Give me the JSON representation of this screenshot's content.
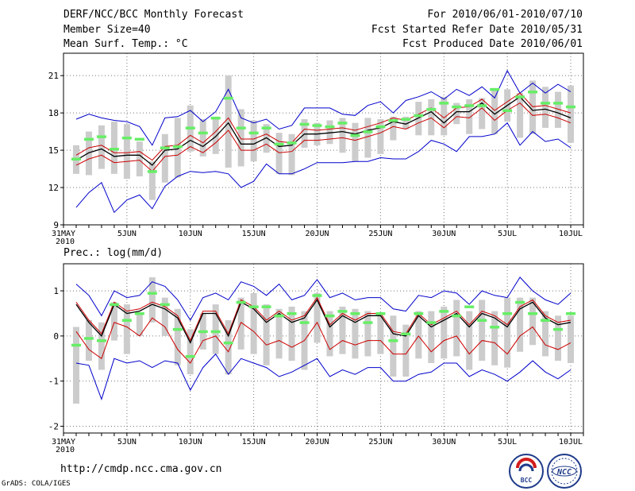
{
  "header": {
    "title": "DERF/NCC/BCC Monthly Forecast",
    "member_size": "Member Size=40",
    "variable": "Mean Surf. Temp.: °C",
    "period": "For 2010/06/01-2010/07/10",
    "fcst_started": "Fcst Started Refer Date 2010/05/31",
    "fcst_produced": "Fcst Produced Date 2010/06/01"
  },
  "footer": {
    "url": "http://cmdp.ncc.cma.gov.cn",
    "grads": "GrADS: COLA/IGES",
    "logo_left": "BCC",
    "logo_right": "NCC"
  },
  "chart_data": [
    {
      "type": "line",
      "title": "Mean Surf. Temp.: °C",
      "xlabel": "",
      "ylabel": "",
      "ylim": [
        9,
        22.8
      ],
      "yticks": [
        9,
        12,
        15,
        18,
        21
      ],
      "xlim": [
        0,
        41
      ],
      "grid": true,
      "x_first_label": "31MAY",
      "x_year": "2010",
      "xticks": [
        {
          "x": 0,
          "label": "31MAY"
        },
        {
          "x": 5,
          "label": "5JUN"
        },
        {
          "x": 10,
          "label": "10JUN"
        },
        {
          "x": 15,
          "label": "15JUN"
        },
        {
          "x": 20,
          "label": "20JUN"
        },
        {
          "x": 25,
          "label": "25JUN"
        },
        {
          "x": 30,
          "label": "30JUN"
        },
        {
          "x": 35,
          "label": "5JUL"
        },
        {
          "x": 40,
          "label": "10JUL"
        }
      ],
      "days": [
        1,
        2,
        3,
        4,
        5,
        6,
        7,
        8,
        9,
        10,
        11,
        12,
        13,
        14,
        15,
        16,
        17,
        18,
        19,
        20,
        21,
        22,
        23,
        24,
        25,
        26,
        27,
        28,
        29,
        30,
        31,
        32,
        33,
        34,
        35,
        36,
        37,
        38,
        39,
        40
      ],
      "series": [
        {
          "name": "ensemble mean",
          "color": "#000000",
          "values": [
            14.2,
            14.8,
            15.1,
            14.5,
            14.6,
            14.6,
            13.8,
            15.0,
            15.1,
            15.8,
            15.3,
            16.1,
            17.2,
            15.5,
            15.5,
            16.0,
            15.3,
            15.4,
            16.3,
            16.3,
            16.4,
            16.5,
            16.3,
            16.6,
            16.8,
            17.3,
            17.1,
            17.6,
            18.1,
            17.2,
            18.1,
            18.1,
            18.8,
            17.9,
            18.6,
            19.3,
            18.2,
            18.3,
            18.0,
            17.6
          ]
        },
        {
          "name": "upper red",
          "color": "#cc0000",
          "values": [
            14.6,
            15.2,
            15.4,
            14.8,
            14.8,
            14.9,
            14.2,
            15.3,
            15.4,
            16.2,
            15.6,
            16.5,
            17.6,
            15.9,
            15.9,
            16.3,
            15.7,
            15.6,
            16.7,
            16.6,
            16.7,
            16.8,
            16.6,
            16.9,
            17.2,
            17.6,
            17.4,
            17.9,
            18.4,
            17.6,
            18.4,
            18.5,
            19.1,
            18.2,
            18.9,
            19.6,
            18.5,
            18.6,
            18.3,
            18.0
          ]
        },
        {
          "name": "lower red",
          "color": "#cc0000",
          "values": [
            13.8,
            14.3,
            14.6,
            14.0,
            14.1,
            14.2,
            13.3,
            14.5,
            14.6,
            15.3,
            14.8,
            15.6,
            16.6,
            15.0,
            15.0,
            15.5,
            14.8,
            14.9,
            15.8,
            15.8,
            15.9,
            16.0,
            15.8,
            16.1,
            16.4,
            16.9,
            16.7,
            17.2,
            17.6,
            16.8,
            17.7,
            17.6,
            18.4,
            17.4,
            18.2,
            18.8,
            17.8,
            17.9,
            17.6,
            17.2
          ]
        },
        {
          "name": "upper blue",
          "color": "#0000cc",
          "values": [
            17.5,
            17.9,
            17.6,
            17.4,
            17.3,
            16.9,
            15.4,
            17.6,
            17.7,
            18.2,
            17.3,
            18.1,
            19.9,
            17.6,
            17.2,
            17.5,
            16.7,
            17.0,
            18.4,
            18.4,
            18.4,
            17.9,
            17.8,
            18.6,
            18.9,
            18.0,
            19.0,
            19.3,
            19.7,
            19.1,
            19.9,
            19.4,
            20.1,
            19.2,
            21.4,
            19.6,
            20.4,
            19.6,
            20.3,
            19.7
          ]
        },
        {
          "name": "lower blue",
          "color": "#0000cc",
          "values": [
            10.4,
            11.6,
            12.4,
            10.0,
            11.0,
            11.4,
            10.3,
            12.1,
            12.9,
            13.3,
            13.2,
            13.3,
            13.1,
            12.0,
            12.5,
            13.9,
            13.1,
            13.1,
            13.5,
            14.0,
            14.0,
            14.0,
            14.1,
            14.1,
            14.4,
            14.3,
            14.3,
            14.9,
            15.8,
            15.5,
            14.9,
            16.1,
            16.1,
            16.3,
            17.2,
            15.4,
            16.5,
            15.7,
            15.9,
            15.2
          ]
        },
        {
          "name": "green marks",
          "color": "#66ee66",
          "values": [
            14.3,
            15.9,
            16.1,
            15.1,
            16.0,
            15.9,
            13.3,
            15.2,
            15.3,
            16.8,
            16.4,
            17.6,
            19.2,
            16.8,
            16.4,
            16.8,
            15.5,
            15.6,
            17.1,
            17.0,
            16.9,
            17.2,
            16.2,
            16.5,
            16.9,
            17.4,
            17.5,
            17.8,
            18.3,
            18.8,
            18.5,
            18.6,
            18.6,
            19.9,
            18.2,
            19.3,
            19.7,
            18.8,
            18.8,
            18.5
          ]
        },
        {
          "name": "box top",
          "color": "#cccccc",
          "values": [
            15.4,
            16.5,
            17.0,
            17.3,
            17.1,
            15.7,
            14.1,
            16.3,
            17.6,
            18.6,
            17.5,
            17.5,
            21.0,
            18.3,
            17.4,
            17.1,
            16.4,
            16.3,
            17.5,
            17.2,
            17.4,
            17.6,
            17.2,
            17.6,
            17.5,
            17.7,
            17.7,
            18.9,
            19.1,
            19.3,
            18.8,
            19.1,
            19.2,
            20.0,
            19.9,
            19.6,
            20.6,
            20.1,
            19.7,
            20.2
          ]
        },
        {
          "name": "box bottom",
          "color": "#cccccc",
          "values": [
            13.1,
            13.0,
            13.5,
            13.1,
            12.7,
            12.9,
            11.0,
            12.4,
            12.8,
            14.9,
            14.5,
            14.7,
            13.6,
            13.7,
            14.1,
            14.8,
            13.1,
            13.0,
            15.2,
            15.4,
            15.5,
            14.8,
            14.1,
            14.4,
            14.7,
            15.8,
            16.7,
            16.2,
            16.2,
            16.2,
            17.1,
            16.3,
            16.7,
            16.3,
            17.3,
            16.0,
            16.3,
            16.8,
            16.8,
            15.6
          ]
        }
      ]
    },
    {
      "type": "line",
      "title": "Prec.: log(mm/d)",
      "xlabel": "",
      "ylabel": "",
      "ylim": [
        -2.15,
        1.6
      ],
      "yticks": [
        -2,
        -1,
        0,
        1
      ],
      "xlim": [
        0,
        41
      ],
      "grid": true,
      "x_first_label": "31MAY",
      "x_year": "2010",
      "xticks": [
        {
          "x": 0,
          "label": "31MAY"
        },
        {
          "x": 5,
          "label": "5JUN"
        },
        {
          "x": 10,
          "label": "10JUN"
        },
        {
          "x": 15,
          "label": "15JUN"
        },
        {
          "x": 20,
          "label": "20JUN"
        },
        {
          "x": 25,
          "label": "25JUN"
        },
        {
          "x": 30,
          "label": "30JUN"
        },
        {
          "x": 35,
          "label": "5JUL"
        },
        {
          "x": 40,
          "label": "10JUL"
        }
      ],
      "days": [
        1,
        2,
        3,
        4,
        5,
        6,
        7,
        8,
        9,
        10,
        11,
        12,
        13,
        14,
        15,
        16,
        17,
        18,
        19,
        20,
        21,
        22,
        23,
        24,
        25,
        26,
        27,
        28,
        29,
        30,
        31,
        32,
        33,
        34,
        35,
        36,
        37,
        38,
        39,
        40
      ],
      "series": [
        {
          "name": "ensemble mean",
          "color": "#000000",
          "values": [
            0.7,
            0.3,
            0.0,
            0.7,
            0.5,
            0.55,
            0.7,
            0.6,
            0.4,
            -0.15,
            0.5,
            0.5,
            0.0,
            0.75,
            0.6,
            0.3,
            0.5,
            0.3,
            0.4,
            0.8,
            0.2,
            0.45,
            0.3,
            0.45,
            0.45,
            0.05,
            0.0,
            0.45,
            0.2,
            0.35,
            0.5,
            0.2,
            0.5,
            0.4,
            0.2,
            0.6,
            0.75,
            0.4,
            0.25,
            0.3
          ]
        },
        {
          "name": "upper red",
          "color": "#cc0000",
          "values": [
            0.75,
            0.35,
            0.05,
            0.75,
            0.55,
            0.6,
            0.75,
            0.65,
            0.45,
            -0.1,
            0.55,
            0.55,
            0.05,
            0.8,
            0.65,
            0.35,
            0.55,
            0.35,
            0.45,
            0.85,
            0.25,
            0.5,
            0.35,
            0.5,
            0.5,
            0.1,
            0.05,
            0.5,
            0.25,
            0.4,
            0.55,
            0.25,
            0.55,
            0.45,
            0.25,
            0.65,
            0.8,
            0.45,
            0.3,
            0.35
          ]
        },
        {
          "name": "lower red",
          "color": "#cc0000",
          "values": [
            0.1,
            -0.3,
            -0.5,
            0.3,
            0.2,
            0.0,
            0.4,
            0.2,
            -0.3,
            -0.6,
            -0.1,
            0.0,
            -0.35,
            0.3,
            0.1,
            -0.2,
            -0.1,
            -0.25,
            -0.1,
            0.3,
            -0.3,
            -0.1,
            -0.2,
            -0.1,
            -0.1,
            -0.4,
            -0.4,
            0.0,
            -0.35,
            -0.1,
            0.0,
            -0.4,
            -0.1,
            -0.15,
            -0.4,
            0.0,
            0.2,
            -0.2,
            -0.3,
            -0.15
          ]
        },
        {
          "name": "upper blue",
          "color": "#0000cc",
          "values": [
            1.15,
            0.9,
            0.45,
            1.0,
            0.85,
            0.9,
            1.2,
            1.1,
            0.8,
            0.35,
            0.85,
            0.95,
            0.8,
            1.2,
            1.1,
            0.9,
            1.15,
            0.8,
            0.9,
            1.25,
            0.85,
            0.95,
            0.8,
            0.85,
            0.85,
            0.6,
            0.55,
            0.9,
            0.85,
            1.0,
            0.95,
            0.7,
            1.0,
            0.9,
            0.85,
            1.3,
            1.0,
            0.8,
            0.7,
            0.95
          ]
        },
        {
          "name": "lower blue",
          "color": "#0000cc",
          "values": [
            -0.6,
            -0.65,
            -1.4,
            -0.5,
            -0.6,
            -0.55,
            -0.7,
            -0.55,
            -0.6,
            -1.2,
            -0.7,
            -0.4,
            -0.85,
            -0.5,
            -0.6,
            -0.7,
            -0.9,
            -0.8,
            -0.65,
            -0.5,
            -0.9,
            -0.75,
            -0.85,
            -0.7,
            -0.7,
            -1.0,
            -1.0,
            -0.85,
            -0.8,
            -0.6,
            -0.6,
            -0.9,
            -0.75,
            -0.85,
            -1.0,
            -0.8,
            -0.55,
            -0.8,
            -0.95,
            -0.75
          ]
        },
        {
          "name": "green marks",
          "color": "#66ee66",
          "values": [
            -0.2,
            -0.05,
            -0.1,
            0.7,
            0.35,
            0.5,
            0.95,
            0.7,
            0.15,
            -0.45,
            0.1,
            0.1,
            -0.15,
            0.75,
            0.65,
            0.65,
            0.45,
            0.5,
            0.3,
            0.9,
            0.45,
            0.55,
            0.5,
            0.3,
            0.5,
            -0.1,
            0.05,
            0.5,
            0.3,
            0.55,
            0.45,
            0.65,
            0.35,
            0.2,
            0.5,
            0.75,
            0.5,
            0.35,
            0.15,
            0.5
          ]
        },
        {
          "name": "box top",
          "color": "#cccccc",
          "values": [
            0.2,
            0.35,
            0.3,
            0.75,
            0.7,
            0.5,
            1.3,
            0.85,
            0.6,
            0.15,
            0.5,
            0.7,
            0.35,
            0.85,
            0.95,
            0.7,
            0.6,
            0.65,
            0.55,
            0.95,
            0.55,
            0.65,
            0.6,
            0.55,
            0.45,
            0.45,
            0.25,
            0.55,
            0.55,
            0.65,
            0.8,
            0.55,
            0.8,
            0.55,
            0.85,
            0.85,
            0.85,
            0.55,
            0.45,
            0.45
          ]
        },
        {
          "name": "box bottom",
          "color": "#cccccc",
          "values": [
            -1.5,
            -0.55,
            -0.75,
            -0.1,
            -0.4,
            0.0,
            0.3,
            0.0,
            -0.65,
            -0.85,
            -0.3,
            -0.4,
            -0.85,
            -0.3,
            -0.4,
            -0.65,
            -0.5,
            -0.55,
            -0.75,
            -0.15,
            -0.45,
            -0.4,
            -0.5,
            -0.45,
            -0.4,
            -0.9,
            -0.9,
            -0.5,
            -0.6,
            -0.5,
            -0.45,
            -0.75,
            -0.55,
            -0.65,
            -0.7,
            -0.35,
            -0.2,
            -0.45,
            -0.55,
            -0.6
          ]
        }
      ]
    }
  ]
}
